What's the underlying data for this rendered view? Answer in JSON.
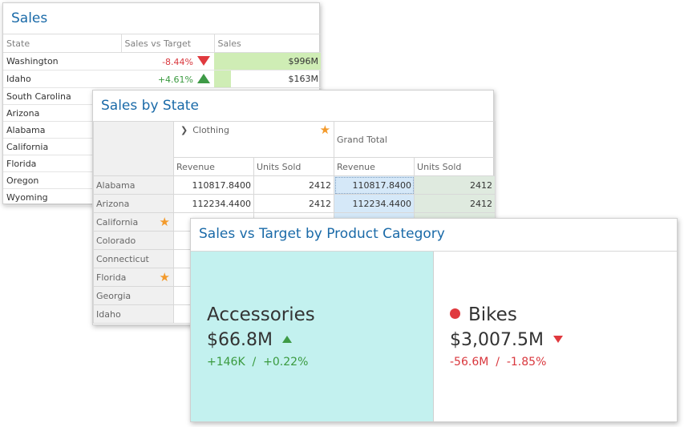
{
  "sales_panel": {
    "title": "Sales",
    "columns": [
      "State",
      "Sales vs Target",
      "Sales"
    ],
    "rows": [
      {
        "state": "Washington",
        "delta": "-8.44%",
        "trend": "down",
        "sales": "$996M",
        "bar_fraction": 1.0
      },
      {
        "state": "Idaho",
        "delta": "+4.61%",
        "trend": "up",
        "sales": "$163M",
        "bar_fraction": 0.16
      },
      {
        "state": "South Carolina",
        "delta": "",
        "trend": "",
        "sales": "",
        "bar_fraction": 0
      },
      {
        "state": "Arizona",
        "delta": "",
        "trend": "",
        "sales": "",
        "bar_fraction": 0
      },
      {
        "state": "Alabama",
        "delta": "",
        "trend": "",
        "sales": "",
        "bar_fraction": 0
      },
      {
        "state": "California",
        "delta": "",
        "trend": "",
        "sales": "",
        "bar_fraction": 0
      },
      {
        "state": "Florida",
        "delta": "",
        "trend": "",
        "sales": "",
        "bar_fraction": 0
      },
      {
        "state": "Oregon",
        "delta": "",
        "trend": "",
        "sales": "",
        "bar_fraction": 0
      },
      {
        "state": "Wyoming",
        "delta": "",
        "trend": "",
        "sales": "",
        "bar_fraction": 0
      }
    ],
    "colors": {
      "negative": "#d9373d",
      "positive": "#3a9a3f",
      "bar": "#cfedb5"
    }
  },
  "pivot_panel": {
    "title": "Sales by State",
    "column_group": "Clothing",
    "grand_total": "Grand Total",
    "measures": [
      "Revenue",
      "Units Sold",
      "Revenue",
      "Units Sold"
    ],
    "rows": [
      {
        "state": "Alabama",
        "starred": false,
        "revenue": "110817.8400",
        "units": "2412",
        "gt_revenue": "110817.8400",
        "gt_units": "2412"
      },
      {
        "state": "Arizona",
        "starred": false,
        "revenue": "112234.4400",
        "units": "2412",
        "gt_revenue": "112234.4400",
        "gt_units": "2412"
      },
      {
        "state": "California",
        "starred": true,
        "revenue": "",
        "units": "",
        "gt_revenue": "",
        "gt_units": ""
      },
      {
        "state": "Colorado",
        "starred": false,
        "revenue": "",
        "units": "",
        "gt_revenue": "",
        "gt_units": ""
      },
      {
        "state": "Connecticut",
        "starred": false,
        "revenue": "",
        "units": "",
        "gt_revenue": "",
        "gt_units": ""
      },
      {
        "state": "Florida",
        "starred": true,
        "revenue": "",
        "units": "",
        "gt_revenue": "",
        "gt_units": ""
      },
      {
        "state": "Georgia",
        "starred": false,
        "revenue": "",
        "units": "",
        "gt_revenue": "",
        "gt_units": ""
      },
      {
        "state": "Idaho",
        "starred": false,
        "revenue": "",
        "units": "",
        "gt_revenue": "",
        "gt_units": ""
      }
    ],
    "icons": {
      "expand": "chevron-right-icon",
      "favorite": "star-icon"
    },
    "colors": {
      "star": "#f39a2b",
      "grand_total_revenue": "#d5e8f8",
      "grand_total_units": "#dfeadf"
    }
  },
  "cards_panel": {
    "title": "Sales vs Target by Product Category",
    "cards": [
      {
        "name": "Accessories",
        "value": "$66.8M",
        "trend": "up",
        "abs_delta": "+146K",
        "separator": "/",
        "pct_delta": "+0.22%",
        "selected": true
      },
      {
        "name": "Bikes",
        "value": "$3,007.5M",
        "trend": "down",
        "abs_delta": "-56.6M",
        "separator": "/",
        "pct_delta": "-1.85%",
        "selected": false,
        "indicator": "red-dot"
      }
    ],
    "colors": {
      "selected_card": "#c3f1ef",
      "up": "#3e9a46",
      "down": "#e0393e"
    }
  }
}
